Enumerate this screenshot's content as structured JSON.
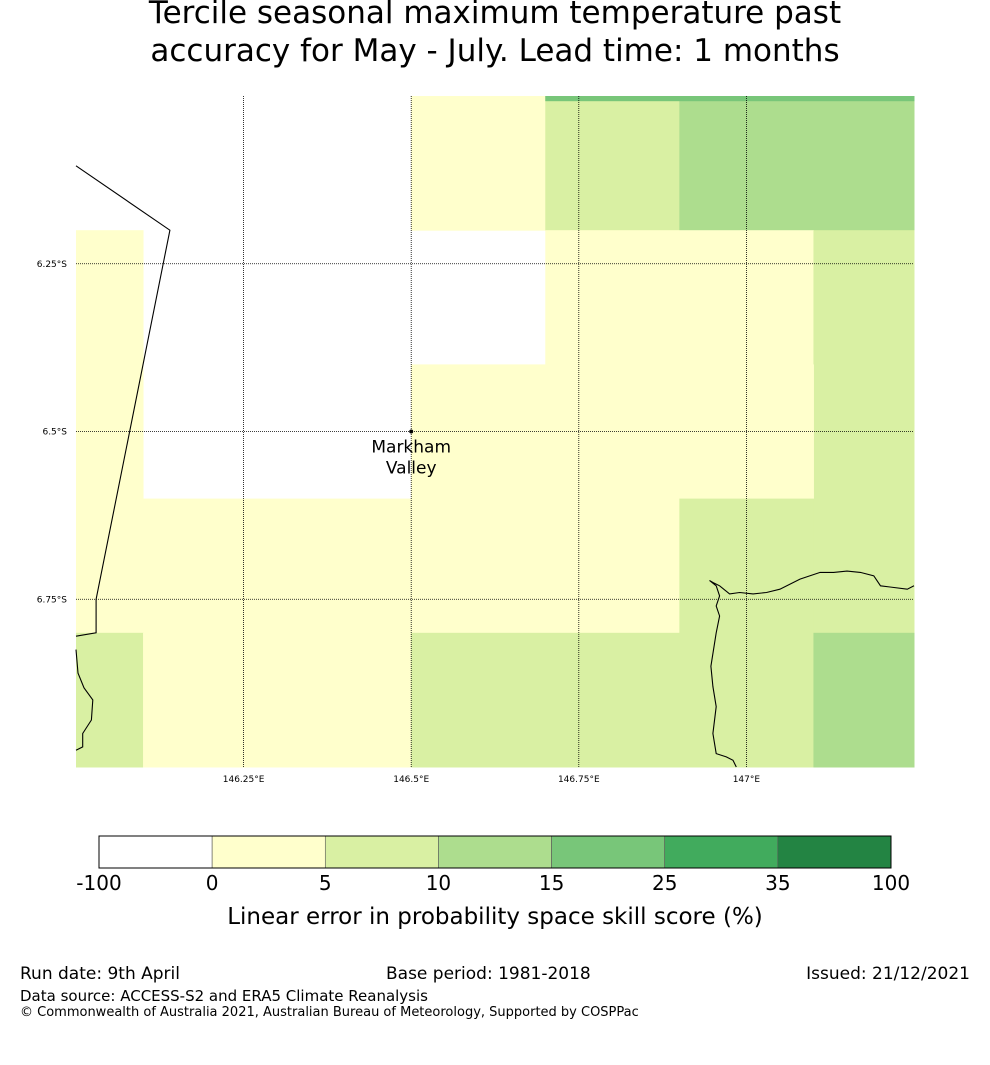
{
  "map": {
    "title_lines": [
      "Tercile seasonal maximum temperature past",
      "accuracy for May - July. Lead time: 1 months"
    ],
    "extent": {
      "lon_min": 146.0,
      "lon_max": 147.25,
      "lat_min": -7.0,
      "lat_max": -6.0
    },
    "meridians": [
      {
        "lon": 146.25,
        "label": "146.25°E"
      },
      {
        "lon": 146.5,
        "label": "146.5°E"
      },
      {
        "lon": 146.75,
        "label": "146.75°E"
      },
      {
        "lon": 147.0,
        "label": "147°E"
      }
    ],
    "parallels": [
      {
        "lat": -6.25,
        "label": "6.25°S"
      },
      {
        "lat": -6.5,
        "label": "6.5°S"
      },
      {
        "lat": -6.75,
        "label": "6.75°S"
      }
    ],
    "place": {
      "name_lines": [
        "Markham",
        "Valley"
      ],
      "lon": 146.5,
      "lat": -6.5
    },
    "grid_cells": [
      {
        "lon": [
          146.5,
          146.7
        ],
        "lat": [
          -6.2,
          -6.0
        ],
        "bin": 1
      },
      {
        "lon": [
          146.7,
          146.9
        ],
        "lat": [
          -6.2,
          -6.0
        ],
        "bin": 2
      },
      {
        "lon": [
          146.9,
          147.25
        ],
        "lat": [
          -6.2,
          -6.0
        ],
        "bin": 3
      },
      {
        "lon": [
          146.7,
          147.25
        ],
        "lat": [
          -6.007,
          -6.0
        ],
        "bin": 4
      },
      {
        "lon": [
          146.0,
          146.1
        ],
        "lat": [
          -6.8,
          -6.2
        ],
        "bin": 1
      },
      {
        "lon": [
          146.7,
          147.1
        ],
        "lat": [
          -6.4,
          -6.2
        ],
        "bin": 1
      },
      {
        "lon": [
          147.1,
          147.25
        ],
        "lat": [
          -6.8,
          -6.2
        ],
        "bin": 2
      },
      {
        "lon": [
          146.5,
          147.1
        ],
        "lat": [
          -6.6,
          -6.4
        ],
        "bin": 1
      },
      {
        "lon": [
          146.1,
          146.5
        ],
        "lat": [
          -6.8,
          -6.6
        ],
        "bin": 1
      },
      {
        "lon": [
          146.5,
          146.9
        ],
        "lat": [
          -6.8,
          -6.6
        ],
        "bin": 1
      },
      {
        "lon": [
          146.9,
          147.1
        ],
        "lat": [
          -6.8,
          -6.6
        ],
        "bin": 2
      },
      {
        "lon": [
          146.0,
          146.1
        ],
        "lat": [
          -7.0,
          -6.8
        ],
        "bin": 2
      },
      {
        "lon": [
          146.1,
          146.5
        ],
        "lat": [
          -7.0,
          -6.8
        ],
        "bin": 1
      },
      {
        "lon": [
          146.5,
          147.1
        ],
        "lat": [
          -7.0,
          -6.8
        ],
        "bin": 2
      },
      {
        "lon": [
          147.1,
          147.25
        ],
        "lat": [
          -7.0,
          -6.8
        ],
        "bin": 3
      }
    ],
    "border_line": [
      [
        146.0,
        -6.104
      ],
      [
        146.14,
        -6.2
      ],
      [
        146.03,
        -6.75
      ],
      [
        146.03,
        -6.8
      ],
      [
        146.0,
        -6.805
      ]
    ],
    "coast_left": [
      [
        146.0,
        -6.825
      ],
      [
        146.003,
        -6.86
      ],
      [
        146.012,
        -6.882
      ],
      [
        146.025,
        -6.9
      ],
      [
        146.023,
        -6.93
      ],
      [
        146.01,
        -6.95
      ],
      [
        146.01,
        -6.97
      ],
      [
        146.0,
        -6.975
      ]
    ],
    "coast_river": [
      [
        147.25,
        -6.73
      ],
      [
        147.24,
        -6.735
      ],
      [
        147.2,
        -6.73
      ],
      [
        147.19,
        -6.715
      ],
      [
        147.17,
        -6.71
      ],
      [
        147.15,
        -6.708
      ],
      [
        147.13,
        -6.71
      ],
      [
        147.11,
        -6.71
      ],
      [
        147.08,
        -6.72
      ],
      [
        147.05,
        -6.735
      ],
      [
        147.03,
        -6.74
      ],
      [
        147.01,
        -6.742
      ],
      [
        146.99,
        -6.74
      ],
      [
        146.975,
        -6.742
      ],
      [
        146.96,
        -6.73
      ],
      [
        146.95,
        -6.725
      ],
      [
        146.945,
        -6.722
      ],
      [
        146.955,
        -6.73
      ],
      [
        146.96,
        -6.745
      ],
      [
        146.955,
        -6.76
      ],
      [
        146.96,
        -6.775
      ],
      [
        146.955,
        -6.8
      ],
      [
        146.947,
        -6.85
      ],
      [
        146.95,
        -6.88
      ],
      [
        146.955,
        -6.91
      ],
      [
        146.95,
        -6.95
      ],
      [
        146.955,
        -6.98
      ],
      [
        146.97,
        -6.985
      ],
      [
        146.98,
        -6.99
      ],
      [
        146.985,
        -7.0
      ]
    ]
  },
  "legend": {
    "title": "Linear error in probability space skill score (%)",
    "tick_labels": [
      "-100",
      "0",
      "5",
      "10",
      "15",
      "25",
      "35",
      "100"
    ],
    "colors": [
      "#ffffff",
      "#ffffcc",
      "#d9f0a3",
      "#addd8e",
      "#78c679",
      "#41ab5d",
      "#238443"
    ]
  },
  "footer": {
    "run_date": "Run date: 9th April",
    "base_period": "Base period: 1981-2018",
    "issued": "Issued: 21/12/2021",
    "data_source": "Data source: ACCESS-S2 and ERA5 Climate Reanalysis",
    "copyright": "© Commonwealth of Australia 2021, Australian Bureau of Meteorology, Supported by COSPPac"
  }
}
